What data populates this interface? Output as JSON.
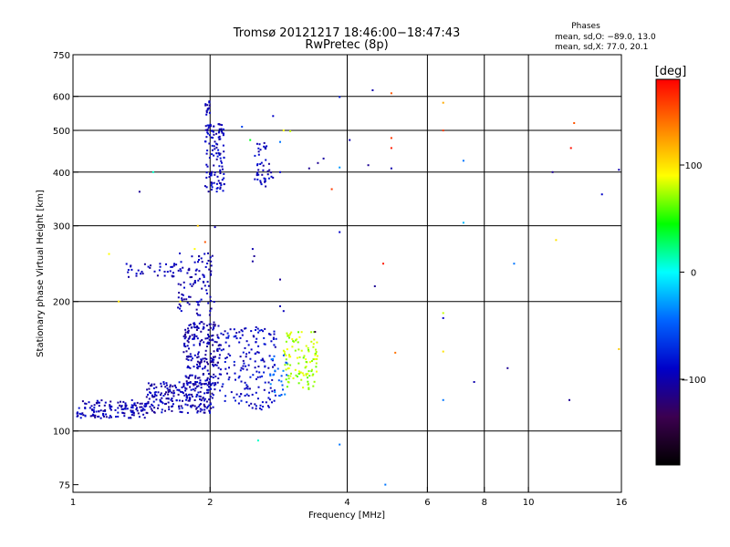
{
  "chart_data": {
    "type": "scatter",
    "title": "Tromsø 20121217 18:46:00−18:47:43",
    "subtitle": "RwPretec (8p)",
    "xlabel": "Frequency [MHz]",
    "ylabel": "Stationary phase Virtual Height [km]",
    "x_scale": "log",
    "y_scale": "log",
    "xlim": [
      1,
      16
    ],
    "ylim": [
      72,
      750
    ],
    "x_grid": [
      2,
      4,
      6,
      8,
      10
    ],
    "x_ticks": [
      1,
      2,
      4,
      6,
      8,
      10,
      16
    ],
    "x_tick_labels": [
      "1",
      "2",
      "4",
      "6",
      "8",
      "10",
      "16"
    ],
    "y_grid": [
      100,
      200,
      300,
      400,
      500,
      600
    ],
    "y_ticks": [
      75,
      100,
      200,
      300,
      400,
      500,
      600,
      750
    ],
    "y_tick_labels": [
      "75",
      "100",
      "200",
      "300",
      "400",
      "500",
      "600",
      "750"
    ],
    "grid": true,
    "stats": {
      "heading": "Phases",
      "line_o": "mean, sd,O: −89.0, 13.0",
      "line_x": "mean, sd,X:  77.0, 20.1"
    },
    "colorbar": {
      "label": "[deg]",
      "range": [
        -180,
        180
      ],
      "ticks": [
        100,
        0,
        -100
      ],
      "tick_labels": [
        "100",
        "0",
        "−100"
      ],
      "colors": [
        "#ff0000",
        "#ff8000",
        "#ffff00",
        "#00ff00",
        "#00ffff",
        "#0064ff",
        "#0000c8",
        "#3c0050",
        "#000000"
      ]
    },
    "clusters": [
      {
        "x": [
          1.02,
          1.45
        ],
        "y": [
          107,
          118
        ],
        "n": 140,
        "phase": [
          -115,
          -80
        ]
      },
      {
        "x": [
          1.45,
          2.05
        ],
        "y": [
          110,
          130
        ],
        "n": 220,
        "phase": [
          -115,
          -80
        ]
      },
      {
        "x": [
          1.75,
          2.1
        ],
        "y": [
          128,
          180
        ],
        "n": 220,
        "phase": [
          -115,
          -85
        ]
      },
      {
        "x": [
          1.7,
          2.05
        ],
        "y": [
          185,
          260
        ],
        "n": 90,
        "phase": [
          -110,
          -85
        ]
      },
      {
        "x": [
          1.3,
          1.8
        ],
        "y": [
          228,
          245
        ],
        "n": 40,
        "phase": [
          -110,
          -85
        ]
      },
      {
        "x": [
          1.95,
          2.15
        ],
        "y": [
          360,
          520
        ],
        "n": 120,
        "phase": [
          -110,
          -80
        ]
      },
      {
        "x": [
          1.95,
          2.0
        ],
        "y": [
          540,
          590
        ],
        "n": 15,
        "phase": [
          -110,
          -80
        ]
      },
      {
        "x": [
          2.1,
          2.8
        ],
        "y": [
          112,
          175
        ],
        "n": 180,
        "phase": [
          -105,
          -75
        ]
      },
      {
        "x": [
          2.5,
          2.75
        ],
        "y": [
          370,
          470
        ],
        "n": 45,
        "phase": [
          -110,
          -80
        ]
      },
      {
        "x": [
          2.9,
          3.45
        ],
        "y": [
          125,
          170
        ],
        "n": 110,
        "phase": [
          60,
          90
        ]
      },
      {
        "x": [
          2.7,
          2.95
        ],
        "y": [
          120,
          150
        ],
        "n": 25,
        "phase": [
          -60,
          -30
        ]
      }
    ],
    "points": [
      {
        "x": 1.26,
        "y": 200,
        "phase": 100
      },
      {
        "x": 1.2,
        "y": 258,
        "phase": 90
      },
      {
        "x": 1.5,
        "y": 400,
        "phase": 10
      },
      {
        "x": 2.55,
        "y": 95,
        "phase": 10
      },
      {
        "x": 3.85,
        "y": 93,
        "phase": -40
      },
      {
        "x": 4.85,
        "y": 75,
        "phase": -40
      },
      {
        "x": 5.0,
        "y": 610,
        "phase": 150
      },
      {
        "x": 4.55,
        "y": 620,
        "phase": -100
      },
      {
        "x": 5.0,
        "y": 480,
        "phase": 160
      },
      {
        "x": 5.0,
        "y": 455,
        "phase": 170
      },
      {
        "x": 6.5,
        "y": 500,
        "phase": 160
      },
      {
        "x": 6.5,
        "y": 580,
        "phase": 120
      },
      {
        "x": 7.2,
        "y": 425,
        "phase": -40
      },
      {
        "x": 7.2,
        "y": 305,
        "phase": -20
      },
      {
        "x": 4.8,
        "y": 245,
        "phase": 170
      },
      {
        "x": 4.6,
        "y": 217,
        "phase": -110
      },
      {
        "x": 6.5,
        "y": 188,
        "phase": 80
      },
      {
        "x": 6.5,
        "y": 183,
        "phase": -90
      },
      {
        "x": 5.1,
        "y": 152,
        "phase": 140
      },
      {
        "x": 6.5,
        "y": 153,
        "phase": 100
      },
      {
        "x": 6.5,
        "y": 118,
        "phase": -40
      },
      {
        "x": 7.6,
        "y": 130,
        "phase": -100
      },
      {
        "x": 9.0,
        "y": 140,
        "phase": -110
      },
      {
        "x": 9.3,
        "y": 245,
        "phase": -40
      },
      {
        "x": 11.5,
        "y": 278,
        "phase": 100
      },
      {
        "x": 12.4,
        "y": 455,
        "phase": 175
      },
      {
        "x": 12.6,
        "y": 520,
        "phase": 150
      },
      {
        "x": 11.3,
        "y": 400,
        "phase": -110
      },
      {
        "x": 14.5,
        "y": 355,
        "phase": -90
      },
      {
        "x": 15.8,
        "y": 405,
        "phase": -100
      },
      {
        "x": 15.8,
        "y": 155,
        "phase": 110
      },
      {
        "x": 12.3,
        "y": 118,
        "phase": -110
      },
      {
        "x": 3.85,
        "y": 598,
        "phase": -80
      },
      {
        "x": 4.05,
        "y": 475,
        "phase": -100
      },
      {
        "x": 3.85,
        "y": 410,
        "phase": -30
      },
      {
        "x": 3.85,
        "y": 290,
        "phase": -90
      },
      {
        "x": 3.7,
        "y": 365,
        "phase": 160
      },
      {
        "x": 3.3,
        "y": 408,
        "phase": -110
      },
      {
        "x": 3.45,
        "y": 420,
        "phase": -110
      },
      {
        "x": 3.55,
        "y": 430,
        "phase": -105
      },
      {
        "x": 4.45,
        "y": 415,
        "phase": -110
      },
      {
        "x": 5.0,
        "y": 408,
        "phase": -100
      },
      {
        "x": 2.45,
        "y": 475,
        "phase": 40
      },
      {
        "x": 2.85,
        "y": 470,
        "phase": -40
      },
      {
        "x": 2.9,
        "y": 500,
        "phase": 90
      },
      {
        "x": 3.0,
        "y": 498,
        "phase": 80
      },
      {
        "x": 2.35,
        "y": 510,
        "phase": -60
      },
      {
        "x": 2.75,
        "y": 540,
        "phase": -90
      },
      {
        "x": 2.85,
        "y": 225,
        "phase": -110
      },
      {
        "x": 2.85,
        "y": 195,
        "phase": -100
      },
      {
        "x": 2.9,
        "y": 190,
        "phase": -95
      },
      {
        "x": 3.4,
        "y": 170,
        "phase": -140
      },
      {
        "x": 1.4,
        "y": 360,
        "phase": -110
      },
      {
        "x": 1.88,
        "y": 300,
        "phase": 110
      },
      {
        "x": 1.95,
        "y": 275,
        "phase": 150
      },
      {
        "x": 1.85,
        "y": 265,
        "phase": 90
      },
      {
        "x": 2.05,
        "y": 298,
        "phase": -100
      },
      {
        "x": 1.72,
        "y": 200,
        "phase": 95
      },
      {
        "x": 2.48,
        "y": 265,
        "phase": -100
      },
      {
        "x": 2.5,
        "y": 255,
        "phase": -110
      },
      {
        "x": 2.48,
        "y": 248,
        "phase": -105
      },
      {
        "x": 2.85,
        "y": 400,
        "phase": -90
      }
    ]
  }
}
